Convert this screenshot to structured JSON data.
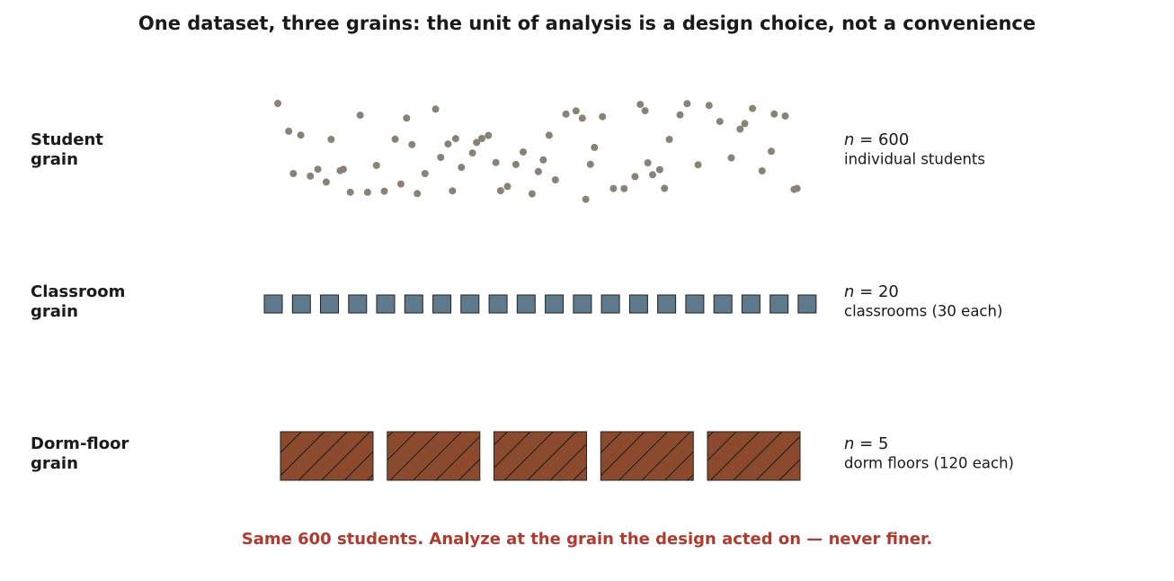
{
  "title": "One dataset, three grains: the unit of analysis is a design choice, not a convenience",
  "rows": [
    {
      "label": [
        "Student",
        "grain"
      ],
      "n_symbol": "n",
      "count": "= 600",
      "description": "individual students"
    },
    {
      "label": [
        "Classroom",
        "grain"
      ],
      "n_symbol": "n",
      "count": "= 20",
      "description": "classrooms (30 each)"
    },
    {
      "label": [
        "Dorm-floor",
        "grain"
      ],
      "n_symbol": "n",
      "count": "= 5",
      "description": "dorm floors (120 each)"
    }
  ],
  "footer": "Same 600 students. Analyze at the grain the design acted on — never finer."
}
